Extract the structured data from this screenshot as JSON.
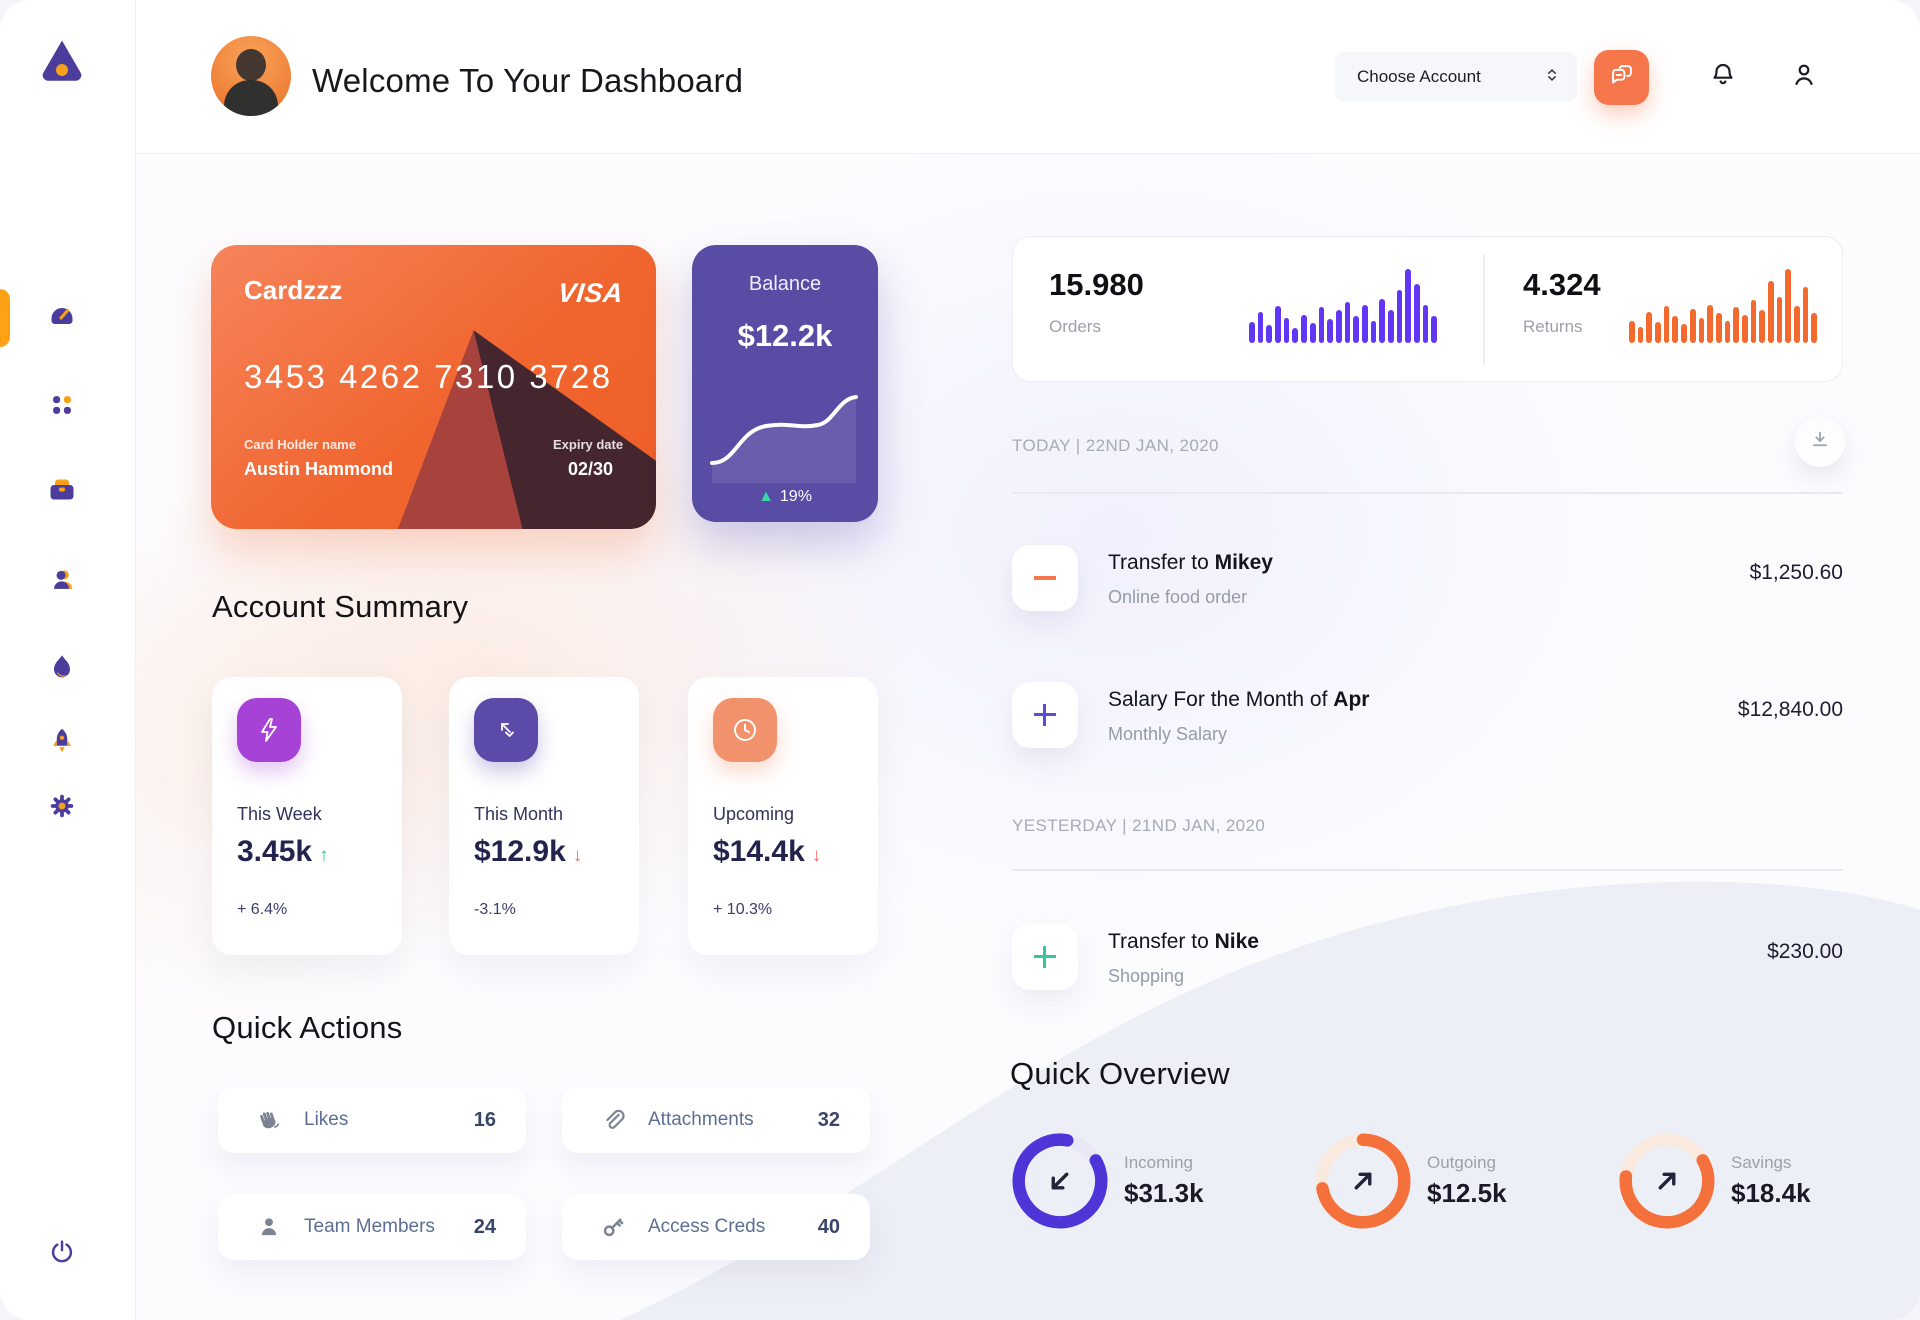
{
  "header": {
    "title": "Welcome To Your Dashboard",
    "account_selector_label": "Choose Account",
    "icons": [
      "chat-icon",
      "bell-icon",
      "user-icon"
    ]
  },
  "sidebar": {
    "logo_icon": "triangle-logo",
    "items": [
      {
        "icon": "speedometer",
        "active": true
      },
      {
        "icon": "grid-dots",
        "active": false
      },
      {
        "icon": "briefcase",
        "active": false
      },
      {
        "icon": "person",
        "active": false
      },
      {
        "icon": "flame",
        "active": false
      },
      {
        "icon": "rocket",
        "active": false
      },
      {
        "icon": "gear",
        "active": false
      }
    ],
    "power_icon": "power"
  },
  "credit_card": {
    "name": "Cardzzz",
    "brand": "VISA",
    "number": "3453 4262 7310 3728",
    "holder_label": "Card Holder name",
    "holder": "Austin Hammond",
    "expiry_label": "Expiry date",
    "expiry": "02/30"
  },
  "balance_card": {
    "label": "Balance",
    "value": "$12.2k",
    "change": "19%"
  },
  "account_summary": {
    "title": "Account Summary",
    "items": [
      {
        "label": "This Week",
        "value": "3.45k",
        "trend": "up",
        "change": "+ 6.4%",
        "icon": "lightning-icon",
        "icon_color": "#A643D6"
      },
      {
        "label": "This Month",
        "value": "$12.9k",
        "trend": "down",
        "change": "-3.1%",
        "icon": "trend-arrows-icon",
        "icon_color": "#5B4AA8"
      },
      {
        "label": "Upcoming",
        "value": "$14.4k",
        "trend": "down",
        "change": "+ 10.3%",
        "icon": "clock-icon",
        "icon_color": "#F2926C"
      }
    ]
  },
  "quick_actions": {
    "title": "Quick Actions",
    "items": [
      {
        "label": "Likes",
        "count": "16",
        "icon": "hand-wave-icon"
      },
      {
        "label": "Attachments",
        "count": "32",
        "icon": "paperclip-icon"
      },
      {
        "label": "Team Members",
        "count": "24",
        "icon": "member-icon"
      },
      {
        "label": "Access Creds",
        "count": "40",
        "icon": "key-icon"
      }
    ]
  },
  "stats": {
    "orders": {
      "value": "15.980",
      "label": "Orders",
      "color": "#6236F5",
      "bars": [
        0.28,
        0.42,
        0.24,
        0.5,
        0.34,
        0.2,
        0.38,
        0.27,
        0.48,
        0.33,
        0.44,
        0.56,
        0.36,
        0.52,
        0.3,
        0.6,
        0.44,
        0.72,
        1.0,
        0.8,
        0.52,
        0.36
      ]
    },
    "returns": {
      "value": "4.324",
      "label": "Returns",
      "color": "#F4692E",
      "bars": [
        0.3,
        0.22,
        0.42,
        0.28,
        0.5,
        0.36,
        0.26,
        0.46,
        0.34,
        0.52,
        0.4,
        0.3,
        0.48,
        0.38,
        0.58,
        0.44,
        0.84,
        0.62,
        1.0,
        0.5,
        0.76,
        0.4
      ]
    }
  },
  "transactions": {
    "today_label": "TODAY | 22ND JAN, 2020",
    "yesterday_label": "YESTERDAY | 21ND JAN, 2020",
    "download_icon": "download-icon",
    "items": [
      {
        "title_prefix": "Transfer to ",
        "title_emphasis": "Mikey",
        "subtitle": "Online food order",
        "amount": "$1,250.60",
        "symbol": "minus",
        "symbol_color": "#F4764A"
      },
      {
        "title_prefix": "Salary For the Month of ",
        "title_emphasis": "Apr",
        "subtitle": "Monthly Salary",
        "amount": "$12,840.00",
        "symbol": "plus",
        "symbol_color": "#5B4DDB"
      },
      {
        "title_prefix": "Transfer to ",
        "title_emphasis": "Nike",
        "subtitle": "Shopping",
        "amount": "$230.00",
        "symbol": "plus",
        "symbol_color": "#35C79A"
      }
    ]
  },
  "quick_overview": {
    "title": "Quick Overview",
    "items": [
      {
        "label": "Incoming",
        "value": "$31.3k",
        "percent": 86,
        "color": "#4F35D8",
        "track": "#EAE7F7",
        "start_deg": -30,
        "arrow": "down-left"
      },
      {
        "label": "Outgoing",
        "value": "$12.5k",
        "percent": 72,
        "color": "#F4713C",
        "track": "#F9E9DF",
        "start_deg": 270,
        "arrow": "up-right"
      },
      {
        "label": "Savings",
        "value": "$18.4k",
        "percent": 60,
        "color": "#F4713C",
        "track": "#F9E9DF",
        "start_deg": -30,
        "arrow": "up-right"
      }
    ]
  }
}
